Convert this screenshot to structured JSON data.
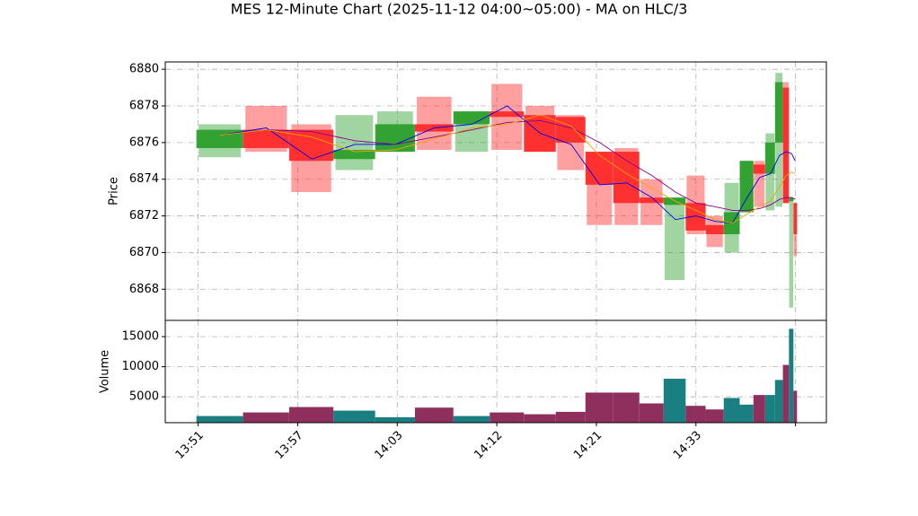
{
  "chart_data": {
    "type": "candlestick",
    "title": "MES 12-Minute Chart (2025-11-12 04:00~05:00) - MA on HLC/3",
    "ylabel": "Price",
    "volume_label": "Volume",
    "x": [
      0.217,
      0.686,
      1.142,
      1.575,
      1.981,
      2.374,
      2.753,
      3.105,
      3.439,
      3.746,
      4.034,
      4.305,
      4.558,
      4.793,
      5.0,
      5.194,
      5.365,
      5.514,
      5.641,
      5.749,
      5.839,
      5.907,
      5.961,
      5.997
    ],
    "open": [
      6875.7,
      6876.7,
      6876.7,
      6875.1,
      6875.5,
      6877.0,
      6877.0,
      6877.7,
      6877.5,
      6877.4,
      6875.5,
      6875.5,
      6873.0,
      6872.6,
      6872.7,
      6871.5,
      6871.0,
      6872.2,
      6874.8,
      6874.3,
      6876.0,
      6879.0,
      6872.8,
      6872.7
    ],
    "high": [
      6877.0,
      6878.0,
      6877.0,
      6877.5,
      6877.7,
      6878.5,
      6877.7,
      6879.2,
      6878.0,
      6877.5,
      6875.5,
      6875.7,
      6874.0,
      6873.0,
      6874.2,
      6872.0,
      6873.8,
      6875.0,
      6875.0,
      6876.5,
      6879.8,
      6879.3,
      6873.0,
      6872.7
    ],
    "low": [
      6875.2,
      6875.5,
      6873.3,
      6874.5,
      6875.5,
      6875.6,
      6875.5,
      6875.6,
      6875.5,
      6874.5,
      6871.5,
      6871.5,
      6871.5,
      6868.5,
      6871.0,
      6870.3,
      6870.0,
      6872.2,
      6872.5,
      6872.3,
      6872.5,
      6872.7,
      6867.0,
      6869.8
    ],
    "close": [
      6876.7,
      6875.7,
      6875.0,
      6875.6,
      6877.0,
      6876.6,
      6877.7,
      6877.4,
      6875.5,
      6876.0,
      6873.7,
      6872.7,
      6872.7,
      6873.0,
      6871.2,
      6871.0,
      6872.2,
      6875.0,
      6874.3,
      6876.0,
      6879.3,
      6872.7,
      6873.0,
      6871.0
    ],
    "volume": [
      1800,
      2400,
      3300,
      2700,
      1600,
      3200,
      1800,
      2400,
      2100,
      2500,
      5700,
      5700,
      3900,
      8000,
      3500,
      2900,
      4800,
      3700,
      5300,
      5300,
      7800,
      10300,
      16300,
      6000
    ],
    "up_color": "#2ca02c",
    "down_color": "#ff2a2a",
    "volume_up_color": "#1a7f80",
    "volume_down_color": "#8e2f5e",
    "lines": [
      {
        "color": "#0000ee",
        "values": [
          6876.4,
          6876.8,
          6875.1,
          6875.9,
          6875.9,
          6876.8,
          6877.0,
          6878.0,
          6876.5,
          6875.9,
          6873.7,
          6873.8,
          6873.0,
          6871.8,
          6872.0,
          6871.7,
          6871.6,
          6873.0,
          6874.1,
          6874.3,
          6875.3,
          6875.5,
          6875.4,
          6875.0
        ]
      },
      {
        "color": "#8b008b",
        "values": [
          6876.4,
          6876.7,
          6876.6,
          6876.1,
          6875.9,
          6876.3,
          6876.7,
          6877.1,
          6877.2,
          6876.8,
          6876.0,
          6875.0,
          6874.2,
          6873.3,
          6872.7,
          6872.5,
          6872.3,
          6872.3,
          6872.4,
          6872.6,
          6872.9,
          6873.0,
          6873.0,
          6872.9
        ]
      },
      {
        "color": "#f0a500",
        "values": [
          6876.4,
          6876.7,
          6876.3,
          6875.5,
          6875.6,
          6876.2,
          6876.8,
          6877.0,
          6877.5,
          6876.9,
          6875.3,
          6874.3,
          6873.5,
          6872.8,
          6872.3,
          6871.8,
          6871.6,
          6872.1,
          6872.5,
          6872.8,
          6873.6,
          6874.2,
          6874.4,
          6874.3
        ]
      }
    ],
    "xlim": [
      -0.33,
      6.31
    ],
    "xticks": [
      {
        "value": 0,
        "label": "13:51"
      },
      {
        "value": 1,
        "label": "13:57"
      },
      {
        "value": 2,
        "label": "14:03"
      },
      {
        "value": 3,
        "label": "14:12"
      },
      {
        "value": 4,
        "label": "14:21"
      },
      {
        "value": 5,
        "label": "14:33"
      },
      {
        "value": 6,
        "label": null
      }
    ],
    "ylim": [
      6866.3,
      6880.4
    ],
    "yticks": [
      6868,
      6870,
      6872,
      6874,
      6876,
      6878,
      6880
    ],
    "volume_ylim": [
      700,
      17700
    ],
    "volume_yticks": [
      5000,
      10000,
      15000
    ],
    "grid": true
  }
}
